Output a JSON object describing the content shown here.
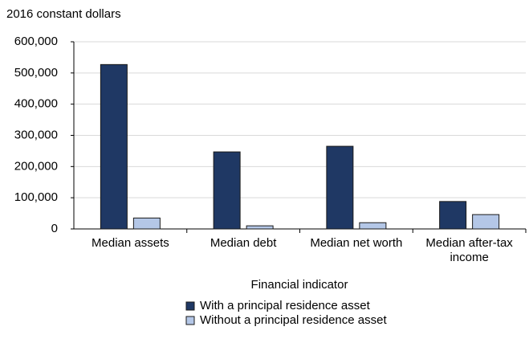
{
  "chart_data": {
    "type": "bar",
    "y_axis_label": "2016 constant dollars",
    "x_axis_label": "Financial indicator",
    "categories": [
      "Median assets",
      "Median debt",
      "Median net worth",
      "Median after-tax income"
    ],
    "series": [
      {
        "name": "With a principal residence asset",
        "color": "#1f3864",
        "values": [
          527000,
          247000,
          265000,
          88000
        ]
      },
      {
        "name": "Without a principal residence asset",
        "color": "#b4c7e7",
        "values": [
          35000,
          10000,
          20000,
          46000
        ]
      }
    ],
    "ylim": [
      0,
      600000
    ],
    "yticks": [
      {
        "value": 0,
        "label": "0"
      },
      {
        "value": 100000,
        "label": "100,000"
      },
      {
        "value": 200000,
        "label": "200,000"
      },
      {
        "value": 300000,
        "label": "300,000"
      },
      {
        "value": 400000,
        "label": "400,000"
      },
      {
        "value": 500000,
        "label": "500,000"
      },
      {
        "value": 600000,
        "label": "600,000"
      }
    ],
    "grid": true,
    "legend": "bottom"
  }
}
